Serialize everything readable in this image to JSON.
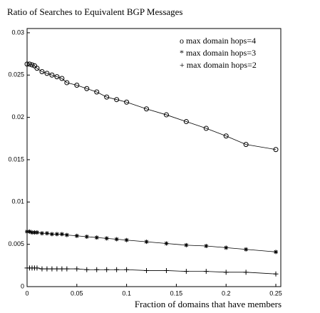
{
  "chart_data": {
    "type": "line",
    "title": "Ratio of Searches to Equivalent BGP Messages",
    "x_label": "Fraction of domains that have members",
    "x": [
      0,
      0.0025,
      0.005,
      0.0075,
      0.01,
      0.015,
      0.02,
      0.025,
      0.03,
      0.035,
      0.04,
      0.05,
      0.06,
      0.07,
      0.08,
      0.09,
      0.1,
      0.12,
      0.14,
      0.16,
      0.18,
      0.2,
      0.22,
      0.25
    ],
    "series": [
      {
        "name": "o max domain hops=4",
        "color": "#000000",
        "marker": "circle",
        "values": [
          0.0263,
          0.0263,
          0.0262,
          0.0261,
          0.0258,
          0.0254,
          0.0252,
          0.025,
          0.0248,
          0.0246,
          0.0241,
          0.0238,
          0.0234,
          0.023,
          0.0224,
          0.0221,
          0.0218,
          0.021,
          0.0203,
          0.0195,
          0.0187,
          0.0178,
          0.0168,
          0.0162
        ]
      },
      {
        "name": "* max domain hops=3",
        "color": "#000000",
        "marker": "star",
        "values": [
          0.0065,
          0.0065,
          0.0064,
          0.0064,
          0.0064,
          0.0063,
          0.0063,
          0.0062,
          0.0062,
          0.0062,
          0.0061,
          0.006,
          0.0059,
          0.0058,
          0.0057,
          0.0056,
          0.0055,
          0.0053,
          0.0051,
          0.0049,
          0.0048,
          0.0046,
          0.0044,
          0.0041
        ]
      },
      {
        "name": "+ max domain hops=2",
        "color": "#000000",
        "marker": "plus",
        "values": [
          0.0022,
          0.0022,
          0.0022,
          0.0022,
          0.0022,
          0.0021,
          0.0021,
          0.0021,
          0.0021,
          0.0021,
          0.0021,
          0.0021,
          0.002,
          0.002,
          0.002,
          0.002,
          0.002,
          0.0019,
          0.0019,
          0.0018,
          0.0018,
          0.0017,
          0.0017,
          0.0015
        ]
      }
    ],
    "xlim": [
      0,
      0.255
    ],
    "xticks": [
      0,
      0.05,
      0.1,
      0.15,
      0.2,
      0.25
    ],
    "ylim": [
      0,
      0.0305
    ],
    "yticks": [
      0,
      0.005,
      0.01,
      0.015,
      0.02,
      0.025,
      0.03
    ],
    "grid": false,
    "legend": "upper right"
  }
}
